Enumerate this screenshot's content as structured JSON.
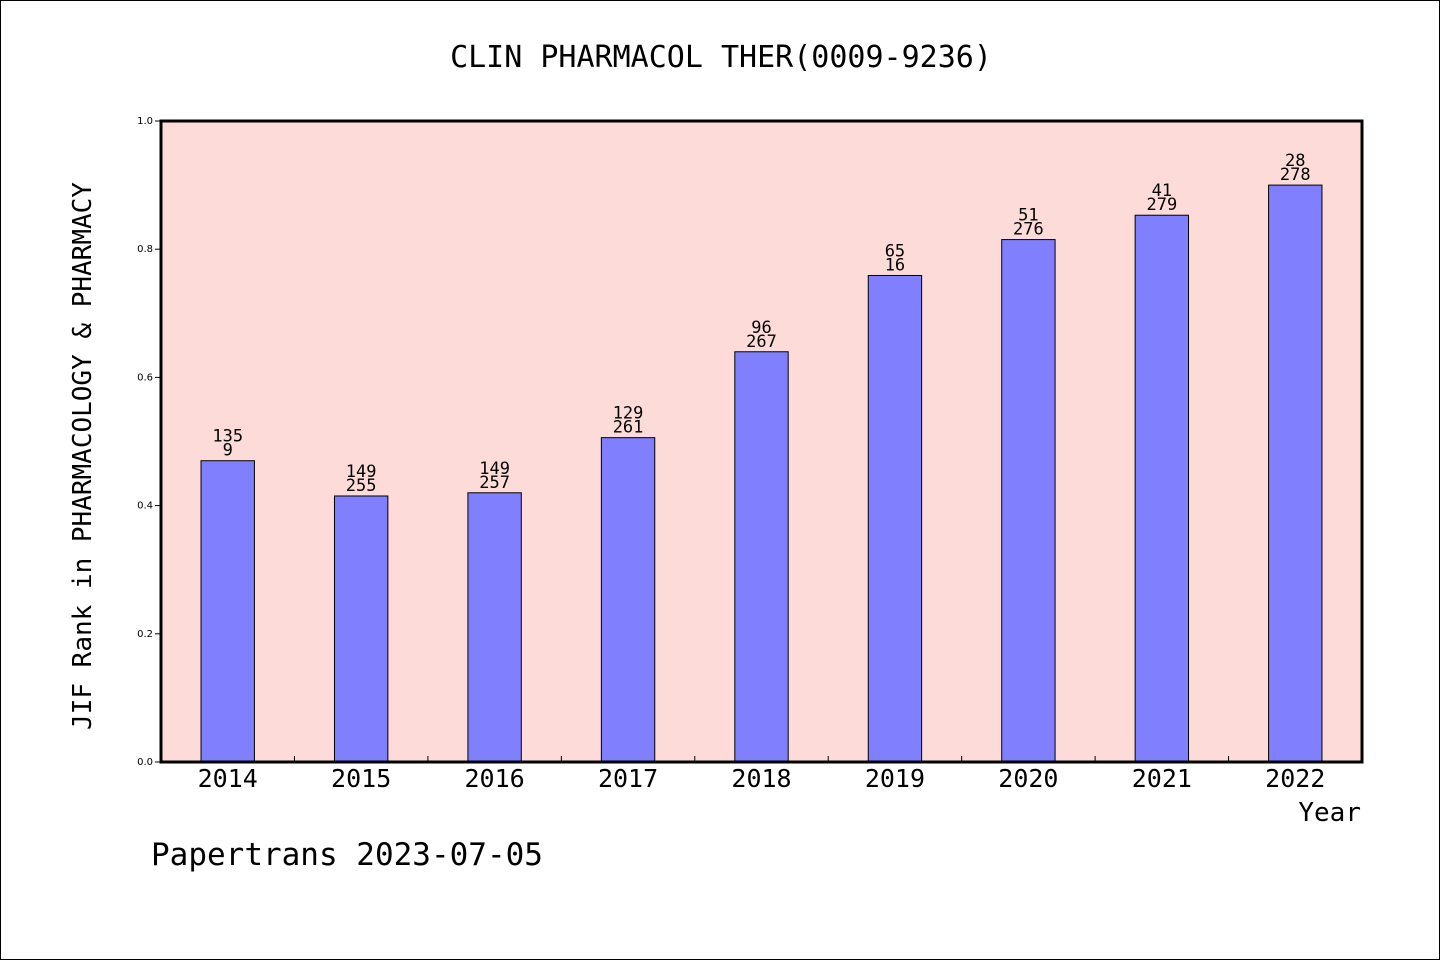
{
  "colors": {
    "plot_background": "#fddbd8",
    "bar_fill": "#8080ff",
    "bar_stroke": "#000000",
    "axis": "#000000",
    "text": "#000000"
  },
  "footer": {
    "credit": "Papertrans 2023-07-05"
  },
  "chart_data": {
    "type": "bar",
    "title": "CLIN PHARMACOL THER(0009-9236)",
    "xlabel": "Year",
    "ylabel": "JIF Rank in PHARMACOLOGY & PHARMACY",
    "ylim": [
      0.0,
      1.0
    ],
    "yticks": [
      "0.0",
      "0.2",
      "0.4",
      "0.6",
      "0.8",
      "1.0"
    ],
    "grid": false,
    "categories": [
      "2014",
      "2015",
      "2016",
      "2017",
      "2018",
      "2019",
      "2020",
      "2021",
      "2022"
    ],
    "values": [
      0.47,
      0.415,
      0.42,
      0.506,
      0.64,
      0.759,
      0.815,
      0.853,
      0.9
    ],
    "rank": [
      "135",
      "149",
      "149",
      "129",
      "96",
      "65",
      "51",
      "41",
      "28"
    ],
    "total": [
      "9",
      "255",
      "257",
      "261",
      "267",
      "16",
      "276",
      "279",
      "278"
    ]
  }
}
